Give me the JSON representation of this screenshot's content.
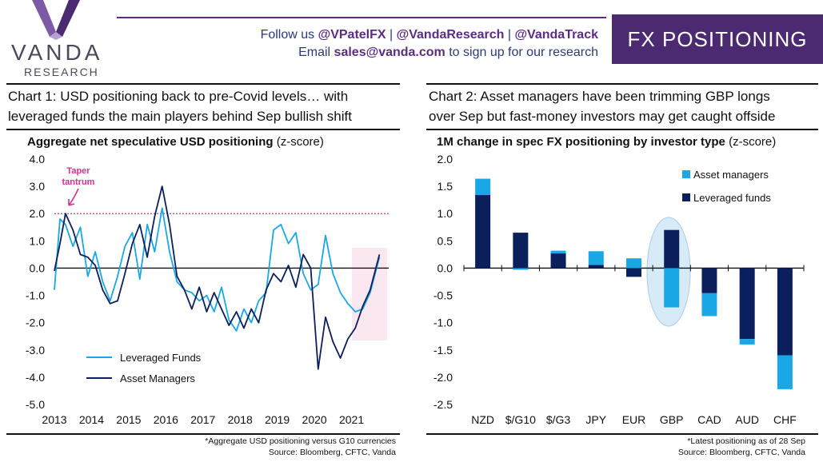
{
  "logo": {
    "word": "VANDA",
    "sub": "RESEARCH"
  },
  "header": {
    "follow_prefix": "Follow us ",
    "handle1": "@VPatelFX",
    "sep": " | ",
    "handle2": "@VandaResearch",
    "handle3": "@VandaTrack",
    "email_prefix": "Email ",
    "email": "sales@vanda.com",
    "email_suffix": " to sign up for our research",
    "banner": "FX POSITIONING"
  },
  "chart1": {
    "title_line1": "Chart 1: USD positioning back to pre-Covid levels… with",
    "title_line2": "leveraged funds the main players behind Sep bullish shift",
    "subtitle_bold": "Aggregate net speculative USD positioning",
    "subtitle_rest": " (z-score)",
    "footnote": "*Aggregate USD positioning versus G10 currencies",
    "source": "Source: Bloomberg, CFTC, Vanda",
    "annotation_line1": "Taper",
    "annotation_line2": "tantrum"
  },
  "chart2": {
    "title_line1": "Chart 2: Asset managers have been trimming GBP longs",
    "title_line2": "over Sep but fast-money investors may get caught offside",
    "subtitle_bold": "1M change in spec FX positioning by investor type",
    "subtitle_rest": " (z-score)",
    "footnote": "*Latest positioning as of 28 Sep",
    "source": "Source: Bloomberg, CFTC, Vanda"
  },
  "colors": {
    "purple": "#4b2a72",
    "light_blue": "#1aa7e6",
    "navy": "#0b1f5c",
    "magenta": "#d6308f",
    "highlight": "#fbe7ef",
    "ellipse": "#d7eaf7"
  },
  "chart_data": [
    {
      "type": "line",
      "title": "Aggregate net speculative USD positioning (z-score)",
      "ylim": [
        -5.0,
        4.0
      ],
      "yticks": [
        "4.0",
        "3.0",
        "2.0",
        "1.0",
        "0.0",
        "-1.0",
        "-2.0",
        "-3.0",
        "-4.0",
        "-5.0"
      ],
      "xticks": [
        "2013",
        "2014",
        "2015",
        "2016",
        "2017",
        "2018",
        "2019",
        "2020",
        "2021"
      ],
      "reference_line": 2.0,
      "legend_placement": "bottom-left",
      "series": [
        {
          "name": "Leveraged Funds",
          "color": "#1aa7e6",
          "x": [
            2013.0,
            2013.15,
            2013.3,
            2013.5,
            2013.7,
            2013.9,
            2014.1,
            2014.3,
            2014.5,
            2014.7,
            2014.9,
            2015.1,
            2015.3,
            2015.5,
            2015.7,
            2015.9,
            2016.1,
            2016.3,
            2016.5,
            2016.7,
            2016.9,
            2017.1,
            2017.3,
            2017.5,
            2017.7,
            2017.9,
            2018.1,
            2018.3,
            2018.5,
            2018.7,
            2018.9,
            2019.1,
            2019.3,
            2019.5,
            2019.7,
            2019.9,
            2020.1,
            2020.3,
            2020.5,
            2020.7,
            2020.9,
            2021.1,
            2021.3,
            2021.5,
            2021.75
          ],
          "values": [
            -0.8,
            1.8,
            1.6,
            0.8,
            1.5,
            -0.3,
            0.6,
            -0.5,
            -1.2,
            -0.3,
            0.8,
            1.3,
            -0.4,
            1.6,
            0.6,
            2.2,
            0.6,
            -0.5,
            -0.8,
            -0.9,
            -1.2,
            -1.0,
            -1.6,
            -0.7,
            -1.9,
            -2.3,
            -1.5,
            -2.0,
            -1.2,
            -0.9,
            1.4,
            1.6,
            0.9,
            1.3,
            -0.2,
            -0.8,
            -0.6,
            1.2,
            -0.2,
            -0.9,
            -1.3,
            -1.6,
            -1.5,
            -0.9,
            0.4
          ]
        },
        {
          "name": "Asset Managers",
          "color": "#0b1f5c",
          "x": [
            2013.0,
            2013.15,
            2013.3,
            2013.5,
            2013.7,
            2013.9,
            2014.1,
            2014.3,
            2014.5,
            2014.7,
            2014.9,
            2015.1,
            2015.3,
            2015.5,
            2015.7,
            2015.9,
            2016.1,
            2016.3,
            2016.5,
            2016.7,
            2016.9,
            2017.1,
            2017.3,
            2017.5,
            2017.7,
            2017.9,
            2018.1,
            2018.3,
            2018.5,
            2018.7,
            2018.9,
            2019.1,
            2019.3,
            2019.5,
            2019.7,
            2019.9,
            2020.1,
            2020.3,
            2020.5,
            2020.7,
            2020.9,
            2021.1,
            2021.3,
            2021.5,
            2021.75
          ],
          "values": [
            -0.1,
            0.9,
            2.0,
            1.4,
            0.5,
            0.4,
            0.1,
            -0.8,
            -1.3,
            -1.2,
            -0.2,
            0.9,
            1.6,
            0.4,
            1.9,
            3.0,
            1.6,
            -0.3,
            -0.8,
            -1.5,
            -0.7,
            -1.6,
            -0.9,
            -1.5,
            -2.1,
            -1.6,
            -2.2,
            -1.5,
            -2.0,
            -0.8,
            -0.2,
            -0.5,
            0.1,
            -0.7,
            0.5,
            0.0,
            -3.7,
            -1.8,
            -2.7,
            -3.3,
            -2.6,
            -2.2,
            -1.4,
            -0.8,
            0.5
          ]
        }
      ]
    },
    {
      "type": "bar",
      "title": "1M change in spec FX positioning by investor type (z-score)",
      "categories": [
        "NZD",
        "$/G10",
        "$/G3",
        "JPY",
        "EUR",
        "GBP",
        "CAD",
        "AUD",
        "CHF"
      ],
      "ylim": [
        -2.5,
        2.0
      ],
      "yticks": [
        "2.0",
        "1.5",
        "1.0",
        "0.5",
        "0.0",
        "-0.5",
        "-1.0",
        "-1.5",
        "-2.0",
        "-2.5"
      ],
      "legend_placement": "top-right",
      "series": [
        {
          "name": "Asset managers",
          "color": "#1aa7e6",
          "values": [
            0.3,
            -0.03,
            0.05,
            0.25,
            0.18,
            -0.72,
            -0.42,
            -0.1,
            -0.62
          ]
        },
        {
          "name": "Leveraged funds",
          "color": "#0b1f5c",
          "values": [
            1.34,
            0.65,
            0.27,
            0.06,
            -0.16,
            0.7,
            -0.46,
            -1.3,
            -1.6
          ]
        }
      ]
    }
  ]
}
